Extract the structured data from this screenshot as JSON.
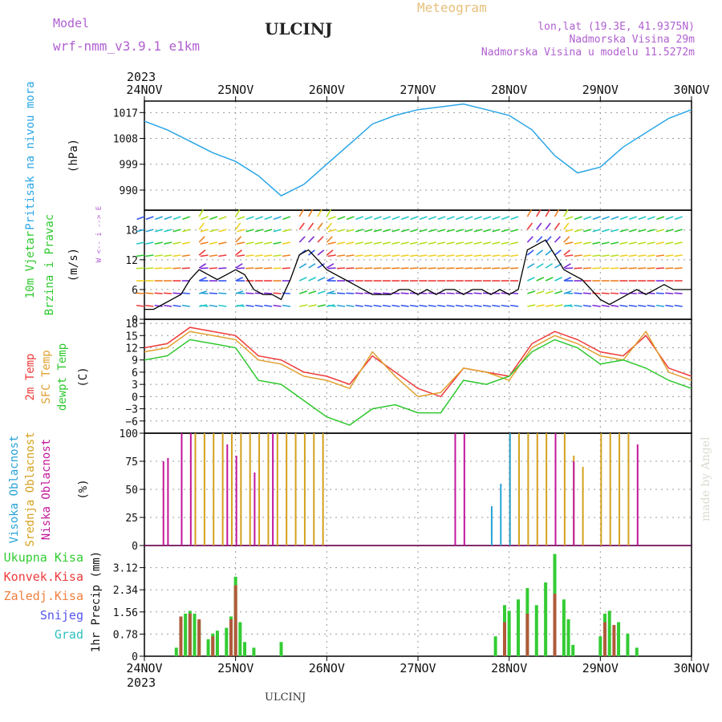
{
  "header": {
    "model_label": "Model",
    "model_name": "wrf-nmm_v3.9.1 e1km",
    "station": "ULCINJ",
    "meteogram": "Meteogram",
    "lonlat": "lon,lat (19.3E, 41.9375N)",
    "elevation": "Nadmorska Visina 29m",
    "model_elevation": "Nadmorska Visina u modelu 11.5272m",
    "footer_station": "ULCINJ",
    "watermark": "made by Angel"
  },
  "colors": {
    "pressure": "#2aa6e6",
    "temp2m": "#ee3b3b",
    "sfc": "#e0a030",
    "dew": "#2ec82e",
    "high_cloud": "#27a3d6",
    "mid_cloud": "#d4a11e",
    "low_cloud": "#c2179a",
    "total_precip": "#33cc33",
    "conv_precip": "#b05a3a",
    "purple_text": "#b060d0",
    "gold_text": "#e6c07a"
  },
  "chart_data": [
    {
      "type": "line",
      "panel": "pressure",
      "ylabel": "Pritisak na nivou mora",
      "unit": "(hPa)",
      "ylim": [
        983,
        1021
      ],
      "yticks": [
        990,
        999,
        1008,
        1017
      ],
      "grid": true,
      "x_start_label": "2023",
      "x_ticks": [
        "24NOV",
        "25NOV",
        "26NOV",
        "27NOV",
        "28NOV",
        "29NOV",
        "30NOV"
      ],
      "series": [
        {
          "x": [
            0,
            0.25,
            0.5,
            0.75,
            1.0,
            1.25,
            1.5,
            1.75,
            2.0,
            2.25,
            2.5,
            2.75,
            3.0,
            3.25,
            3.5,
            3.75,
            4.0,
            4.25,
            4.5,
            4.75,
            5.0,
            5.25,
            5.5,
            5.75,
            6.0
          ],
          "values": [
            1014,
            1011,
            1007,
            1003,
            1000,
            995,
            988,
            992,
            999,
            1006,
            1013,
            1016,
            1018,
            1019,
            1020,
            1018,
            1016,
            1011,
            1002,
            996,
            998,
            1005,
            1010,
            1015,
            1018
          ]
        }
      ]
    },
    {
      "type": "line",
      "panel": "wind",
      "ylabel": "10m Vjetar Brzina i Pravac",
      "unit": "(m/s)",
      "ylim": [
        0,
        22
      ],
      "yticks": [
        0,
        6,
        12,
        18
      ],
      "grid": true,
      "compass": "W <-- i --> E",
      "series": [
        {
          "values": [
            2,
            2,
            3,
            4,
            5,
            8,
            10,
            9,
            8,
            9,
            10,
            9,
            6,
            5,
            5,
            4,
            8,
            13,
            14,
            12,
            10,
            9,
            8,
            7,
            6,
            5,
            5,
            5,
            6,
            6,
            5,
            6,
            5,
            6,
            6,
            5,
            6,
            6,
            5,
            6,
            5,
            6,
            14,
            15,
            16,
            13,
            10,
            9,
            8,
            6,
            4,
            3,
            4,
            5,
            6,
            5,
            6,
            7,
            6,
            6,
            6
          ]
        }
      ]
    },
    {
      "type": "line",
      "panel": "temperature",
      "ylabels": [
        "2m Temp",
        "SFC Temp",
        "dewpt Temp"
      ],
      "unit": "(C)",
      "ylim": [
        -9,
        19
      ],
      "yticks": [
        -6,
        -3,
        0,
        3,
        6,
        9,
        12,
        15,
        18
      ],
      "grid": true,
      "series": [
        {
          "name": "2m Temp",
          "x": [
            0,
            0.25,
            0.5,
            0.75,
            1.0,
            1.25,
            1.5,
            1.75,
            2.0,
            2.25,
            2.5,
            2.75,
            3.0,
            3.25,
            3.5,
            3.75,
            4.0,
            4.25,
            4.5,
            4.75,
            5.0,
            5.25,
            5.5,
            5.75,
            6.0
          ],
          "values": [
            12,
            13,
            17,
            16,
            15,
            10,
            9,
            6,
            5,
            3,
            10,
            6,
            2,
            0,
            7,
            6,
            5,
            13,
            16,
            14,
            11,
            10,
            15,
            7,
            5
          ]
        },
        {
          "name": "SFC Temp",
          "x": [
            0,
            0.25,
            0.5,
            0.75,
            1.0,
            1.25,
            1.5,
            1.75,
            2.0,
            2.25,
            2.5,
            2.75,
            3.0,
            3.25,
            3.5,
            3.75,
            4.0,
            4.25,
            4.5,
            4.75,
            5.0,
            5.25,
            5.5,
            5.75,
            6.0
          ],
          "values": [
            11,
            12,
            16,
            15,
            14,
            9,
            8,
            5,
            4,
            2,
            11,
            5,
            0,
            1,
            7,
            6,
            4,
            12,
            15,
            13,
            10,
            9,
            16,
            6,
            4
          ]
        },
        {
          "name": "dewpt Temp",
          "x": [
            0,
            0.25,
            0.5,
            0.75,
            1.0,
            1.25,
            1.5,
            1.75,
            2.0,
            2.25,
            2.5,
            2.75,
            3.0,
            3.25,
            3.5,
            3.75,
            4.0,
            4.25,
            4.5,
            4.75,
            5.0,
            5.25,
            5.5,
            5.75,
            6.0
          ],
          "values": [
            9,
            10,
            14,
            13,
            12,
            4,
            3,
            -1,
            -5,
            -7,
            -3,
            -2,
            -4,
            -4,
            4,
            3,
            5,
            11,
            14,
            12,
            8,
            9,
            7,
            4,
            2
          ]
        }
      ]
    },
    {
      "type": "bar",
      "panel": "cloud",
      "ylabels": [
        "Visoka Oblacnost",
        "Srednja Oblacnost",
        "Niska Oblacnost"
      ],
      "unit": "(%)",
      "ylim": [
        0,
        100
      ],
      "yticks": [
        0,
        25,
        50,
        75,
        100
      ],
      "grid": true,
      "series": [
        {
          "name": "Srednja Oblacnost",
          "x": [
            0.55,
            0.65,
            0.75,
            0.85,
            0.95,
            1.05,
            1.15,
            1.25,
            1.35,
            1.45,
            1.55,
            1.65,
            1.75,
            1.85,
            1.95,
            4.0,
            4.1,
            4.2,
            4.3,
            4.4,
            4.5,
            4.6,
            4.7,
            4.8,
            5.0,
            5.1,
            5.2,
            5.3
          ],
          "values": [
            100,
            100,
            100,
            100,
            100,
            100,
            100,
            100,
            100,
            100,
            100,
            100,
            100,
            100,
            100,
            100,
            100,
            100,
            100,
            100,
            100,
            100,
            80,
            70,
            100,
            100,
            100,
            100
          ]
        },
        {
          "name": "Niska Oblacnost",
          "x": [
            0.2,
            0.25,
            0.4,
            0.5,
            0.9,
            1.0,
            1.2,
            1.4,
            3.4,
            3.5,
            4.5,
            4.7,
            5.4
          ],
          "values": [
            75,
            78,
            100,
            100,
            90,
            80,
            65,
            100,
            100,
            100,
            100,
            75,
            90
          ]
        },
        {
          "name": "Visoka Oblacnost",
          "x": [
            3.8,
            3.9,
            4.0
          ],
          "values": [
            35,
            55,
            100
          ]
        }
      ]
    },
    {
      "type": "bar",
      "panel": "precip",
      "ylabels": [
        "Ukupna Kisa",
        "Konvek.Kisa",
        "Zaledj.Kisa",
        "Snijeg",
        "Grad"
      ],
      "unit": "1hr Precip (mm)",
      "ylim": [
        0,
        3.9
      ],
      "yticks": [
        0,
        0.78,
        1.56,
        2.34,
        3.12
      ],
      "grid": true,
      "series": [
        {
          "name": "Ukupna Kisa",
          "x": [
            0.35,
            0.45,
            0.5,
            0.55,
            0.6,
            0.7,
            0.75,
            0.8,
            0.9,
            0.95,
            1.0,
            1.05,
            1.1,
            1.2,
            1.5,
            3.85,
            3.95,
            4.0,
            4.1,
            4.2,
            4.3,
            4.4,
            4.5,
            4.6,
            4.65,
            4.7,
            5.0,
            5.05,
            5.1,
            5.2,
            5.3,
            5.4
          ],
          "values": [
            0.3,
            1.5,
            1.6,
            1.5,
            1.2,
            0.6,
            0.8,
            0.9,
            1.0,
            1.4,
            2.8,
            1.2,
            0.5,
            0.3,
            0.5,
            0.7,
            1.8,
            1.6,
            2.0,
            2.4,
            1.8,
            2.6,
            3.6,
            2.0,
            1.3,
            0.4,
            0.7,
            1.5,
            1.6,
            1.2,
            0.8,
            0.3
          ]
        },
        {
          "name": "Konvek.Kisa",
          "x": [
            0.4,
            0.5,
            0.6,
            0.75,
            0.95,
            1.0,
            3.95,
            4.2,
            4.5,
            5.05,
            5.15
          ],
          "values": [
            1.4,
            1.5,
            1.3,
            0.7,
            1.3,
            2.5,
            1.2,
            1.5,
            2.2,
            1.2,
            1.1
          ]
        }
      ]
    }
  ]
}
